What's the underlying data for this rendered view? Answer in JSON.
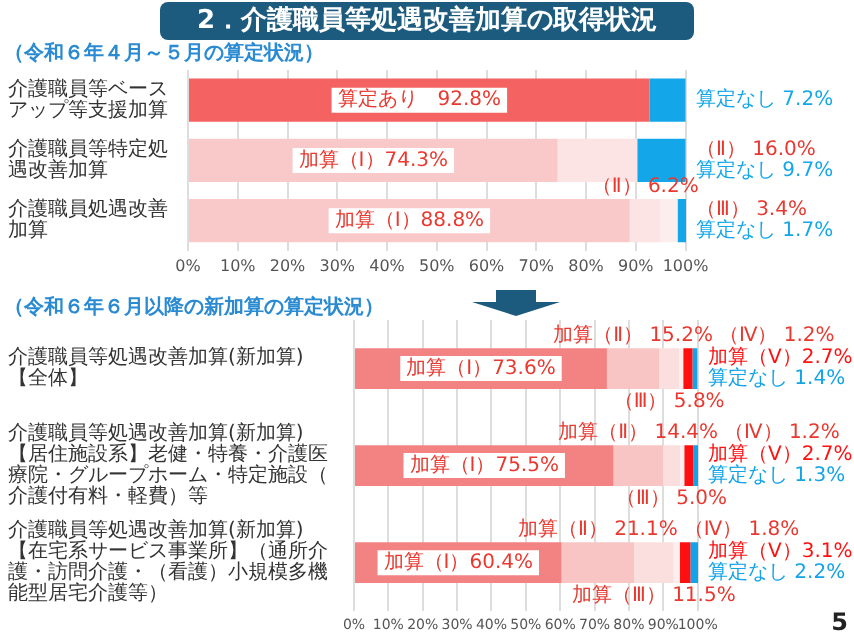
{
  "chart_data": [
    {
      "type": "bar",
      "title": "2．介護職員等処遇改善加算の取得状況",
      "subtitle": "（令和６年４月～５月の算定状況）",
      "orientation": "horizontal",
      "stacked": true,
      "grid": "x",
      "categories": [
        "介護職員等ベースアップ等支援加算",
        "介護職員等特定処遇改善加算",
        "介護職員処遇改善加算"
      ],
      "xlim": [
        0,
        100.1
      ],
      "xticks": [
        {
          "value": 0,
          "label": "0%"
        },
        {
          "value": 10,
          "label": "10%"
        },
        {
          "value": 20,
          "label": "20%"
        },
        {
          "value": 30,
          "label": "30%"
        },
        {
          "value": 40,
          "label": "40%"
        },
        {
          "value": 50,
          "label": "50%"
        },
        {
          "value": 60,
          "label": "60%"
        },
        {
          "value": 70,
          "label": "70%"
        },
        {
          "value": 80,
          "label": "80%"
        },
        {
          "value": 90,
          "label": "90%"
        },
        {
          "value": 100,
          "label": "100%"
        }
      ],
      "series": [
        {
          "colors": [
            "#f46262",
            "#f9c9c9",
            "#f9c9c9"
          ],
          "values": [
            92.8,
            74.3,
            88.8
          ],
          "value_labels": [
            "算定あり　92.8%",
            "加算（Ⅰ）74.3%",
            "加算（Ⅰ）88.8%"
          ]
        },
        {
          "colors": [
            "#fce4e4",
            "#fce4e4",
            "#fce4e4"
          ],
          "values": [
            null,
            16.0,
            6.2
          ],
          "value_labels": [
            null,
            "（Ⅱ）\n16.0%",
            "（Ⅱ）\n6.2%"
          ]
        },
        {
          "colors": [
            "#fdeeee",
            "#fdeeee",
            "#fdeeee"
          ],
          "values": [
            null,
            null,
            3.4
          ],
          "value_labels": [
            null,
            null,
            "（Ⅲ）\n3.4%"
          ]
        },
        {
          "colors": [
            "#13a7ea",
            "#13a7ea",
            "#13a7ea"
          ],
          "values": [
            7.2,
            9.7,
            1.7
          ],
          "value_labels": [
            "算定なし\n7.2%",
            "算定なし\n9.7%",
            "算定なし\n1.7%"
          ]
        }
      ]
    },
    {
      "type": "bar",
      "subtitle": "（令和６年６月以降の新加算の算定状況）",
      "orientation": "horizontal",
      "stacked": true,
      "grid": "x",
      "categories": [
        "介護職員等処遇改善加算(新加算)\n【全体】",
        "介護職員等処遇改善加算(新加算)\n【居住施設系】老健・特養・介護医療院・グループホーム・特定施設（介護付有料・軽費）等",
        "介護職員等処遇改善加算(新加算)\n【在宅系サービス事業所】（通所介護・訪問介護・（看護）小規模多機能型居宅介護等）"
      ],
      "xlim": [
        0,
        100.1
      ],
      "xticks": [
        {
          "value": 0,
          "label": "0%"
        },
        {
          "value": 10,
          "label": "10%"
        },
        {
          "value": 20,
          "label": "20%"
        },
        {
          "value": 30,
          "label": "30%"
        },
        {
          "value": 40,
          "label": "40%"
        },
        {
          "value": 50,
          "label": "50%"
        },
        {
          "value": 60,
          "label": "60%"
        },
        {
          "value": 70,
          "label": "70%"
        },
        {
          "value": 80,
          "label": "80%"
        },
        {
          "value": 90,
          "label": "90%"
        },
        {
          "value": 100,
          "label": "100%"
        }
      ],
      "series": [
        {
          "colors": [
            "#f38383",
            "#f38383",
            "#f38383"
          ],
          "values": [
            73.6,
            75.5,
            60.4
          ],
          "value_labels": [
            "加算（Ⅰ）73.6%",
            "加算（Ⅰ）75.5%",
            "加算（Ⅰ）60.4%"
          ]
        },
        {
          "colors": [
            "#f8c4c4",
            "#f8c4c4",
            "#f8c4c4"
          ],
          "values": [
            15.2,
            14.4,
            21.1
          ],
          "value_labels": [
            "加算（Ⅱ）\n15.2%",
            "加算（Ⅱ）\n14.4%",
            "加算（Ⅱ）\n21.1%"
          ]
        },
        {
          "colors": [
            "#fbdede",
            "#fbdede",
            "#fbdede"
          ],
          "values": [
            5.8,
            5.0,
            11.5
          ],
          "value_labels": [
            "（Ⅲ）\n5.8%",
            "（Ⅲ）\n5.0%",
            "加算（Ⅲ）\n11.5%"
          ]
        },
        {
          "colors": [
            "#fdeeee",
            "#fdeeee",
            "#fdeeee"
          ],
          "values": [
            1.2,
            1.2,
            1.8
          ],
          "value_labels": [
            "（Ⅳ）\n1.2%",
            "（Ⅳ）\n1.2%",
            "（Ⅳ）\n1.8%"
          ]
        },
        {
          "colors": [
            "#ff1010",
            "#ff1010",
            "#ff1010"
          ],
          "values": [
            2.7,
            2.7,
            3.1
          ],
          "value_labels": [
            "加算（Ⅴ）2.7%",
            "加算（Ⅴ）2.7%",
            "加算（Ⅴ）3.1%"
          ]
        },
        {
          "colors": [
            "#12a3e8",
            "#12a3e8",
            "#12a3e8"
          ],
          "values": [
            1.4,
            1.3,
            2.2
          ],
          "value_labels": [
            "算定なし\n1.4%",
            "算定なし\n1.3%",
            "算定なし\n2.2%"
          ]
        }
      ],
      "annotations": [
        "5"
      ]
    }
  ]
}
